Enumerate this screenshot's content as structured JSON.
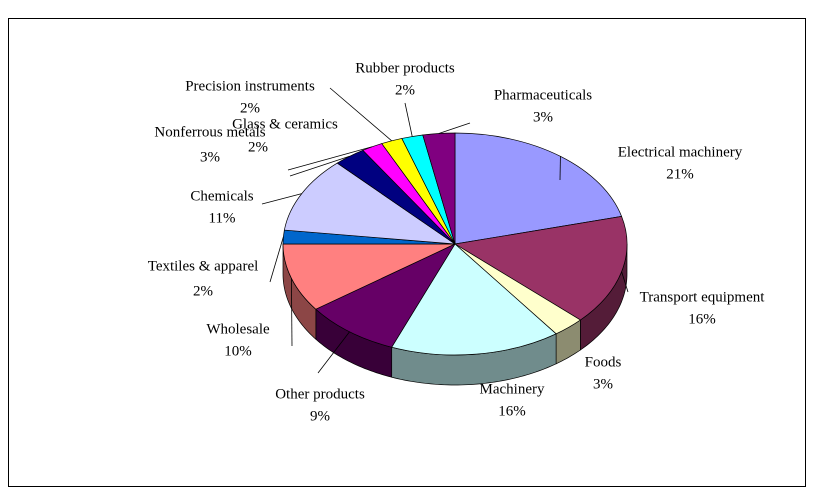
{
  "chart_data": {
    "type": "pie3d",
    "categories": [
      "Electrical machinery",
      "Transport equipment",
      "Foods",
      "Machinery",
      "Other products",
      "Wholesale",
      "Textiles & apparel",
      "Chemicals",
      "Nonferrous metals",
      "Glass & ceramics",
      "Precision instruments",
      "Rubber products",
      "Pharmaceuticals"
    ],
    "values": [
      21,
      16,
      3,
      16,
      9,
      10,
      2,
      11,
      3,
      2,
      2,
      2,
      3
    ],
    "value_labels": [
      "21%",
      "16%",
      "3%",
      "16%",
      "9%",
      "10%",
      "2%",
      "11%",
      "3%",
      "2%",
      "2%",
      "2%",
      "3%"
    ],
    "colors": [
      "#9999ff",
      "#993366",
      "#ffffcc",
      "#ccffff",
      "#660066",
      "#ff8080",
      "#0066cc",
      "#ccccff",
      "#000080",
      "#ff00ff",
      "#ffff00",
      "#00ffff",
      "#800080"
    ]
  }
}
